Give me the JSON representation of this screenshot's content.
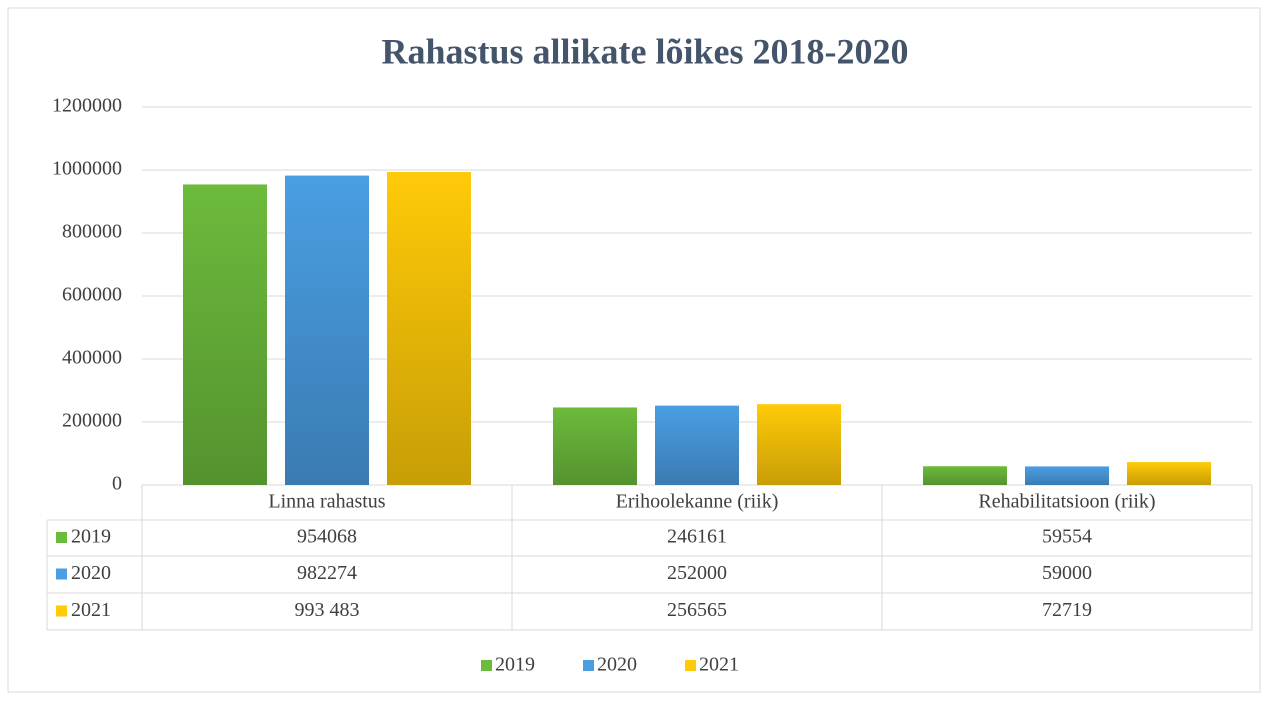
{
  "chart_data": {
    "type": "bar",
    "title": "Rahastus allikate lõikes 2018-2020",
    "categories": [
      "Linna rahastus",
      "Erihoolekanne (riik)",
      "Rehabilitatsioon (riik)"
    ],
    "series": [
      {
        "name": "2019",
        "color": "#6cbb3c",
        "values": [
          954068,
          246161,
          59554
        ]
      },
      {
        "name": "2020",
        "color": "#4a9ee3",
        "values": [
          982274,
          252000,
          59000
        ]
      },
      {
        "name": "2021",
        "color": "#ffca08",
        "values": [
          993483,
          256565,
          72719
        ],
        "value_labels": [
          "993 483",
          "256565",
          "72719"
        ]
      }
    ],
    "ylim": [
      0,
      1200000
    ],
    "yticks": [
      0,
      200000,
      400000,
      600000,
      800000,
      1000000,
      1200000
    ],
    "grid": true,
    "legend": "bottom",
    "data_table": true
  }
}
